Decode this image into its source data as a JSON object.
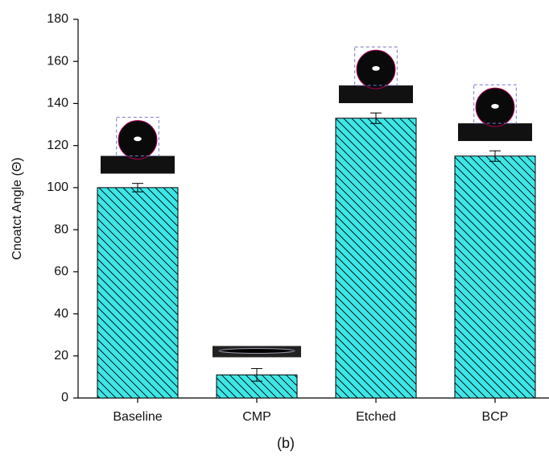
{
  "chart_data": {
    "type": "bar",
    "ylabel": "Cnoatct Angle (Θ)",
    "caption": "(b)",
    "categories": [
      "Baseline",
      "CMP",
      "Etched",
      "BCP"
    ],
    "values": [
      100,
      11,
      133,
      115
    ],
    "errors": [
      2,
      3,
      2.5,
      2.5
    ],
    "color": "#3ee6e6",
    "hatch": true,
    "ylim": [
      0,
      180
    ],
    "yticks": [
      0,
      20,
      40,
      60,
      80,
      100,
      120,
      140,
      160,
      180
    ],
    "grid": false
  }
}
